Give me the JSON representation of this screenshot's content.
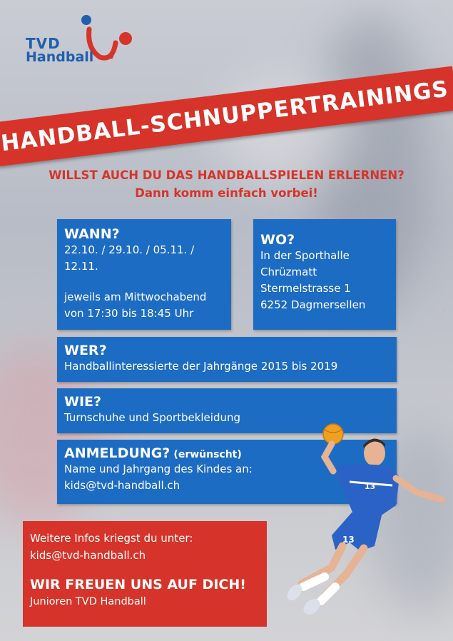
{
  "logo": {
    "line1": "TVD",
    "line2": "Handball"
  },
  "banner": {
    "title": "HANDBALL-SCHNUPPERTRAININGS"
  },
  "subtitle": {
    "line1": "WILLST AUCH DU DAS HANDBALLSPIELEN ERLERNEN?",
    "line2": "Dann komm einfach vorbei!"
  },
  "wann": {
    "heading": "WANN?",
    "dates": "22.10. / 29.10. / 05.11. / 12.11.",
    "line1": "jeweils am Mittwochabend",
    "line2": "von 17:30 bis 18:45 Uhr"
  },
  "wo": {
    "heading": "WO?",
    "line1": "In der Sporthalle",
    "line2": "Chrüzmatt",
    "line3": "Stermelstrasse 1",
    "line4": "6252 Dagmersellen"
  },
  "wer": {
    "heading": "WER?",
    "text": "Handballinteressierte der Jahrgänge 2015 bis 2019"
  },
  "wie": {
    "heading": "WIE?",
    "text": "Turnschuhe und Sportbekleidung"
  },
  "anmeldung": {
    "heading": "ANMELDUNG?",
    "note": "(erwünscht)",
    "line1": "Name und Jahrgang des Kindes an:",
    "email": "kids@tvd-handball.ch"
  },
  "footer": {
    "info": "Weitere Infos kriegst du unter:",
    "email": "kids@tvd-handball.ch",
    "slogan": "WIR FREUEN UNS AUF DICH!",
    "sign": "Junioren TVD Handball"
  },
  "player": {
    "number": "13"
  },
  "colors": {
    "red": "#d6342a",
    "blue": "#1d6cc4"
  }
}
